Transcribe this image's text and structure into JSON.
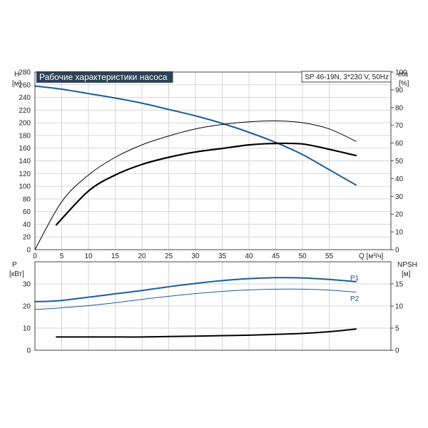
{
  "chart_data": [
    {
      "type": "line",
      "title": "Рабочие характеристики насоса",
      "subtitle": "SP 46-19N, 3*230 V, 50Hz",
      "xlabel": "Q [м³/ч]",
      "xlim": [
        0,
        60
      ],
      "x_ticks": [
        0,
        5,
        10,
        15,
        20,
        25,
        30,
        35,
        40,
        45,
        50,
        55
      ],
      "ylabel_left": "H",
      "ylabel_left_unit": "[м]",
      "ylim_left": [
        0,
        280
      ],
      "y_ticks_left": [
        0,
        20,
        40,
        60,
        80,
        100,
        120,
        140,
        160,
        180,
        200,
        220,
        240,
        260,
        280
      ],
      "ylabel_right": "eta",
      "ylabel_right_unit": "[%]",
      "ylim_right": [
        0,
        100
      ],
      "y_ticks_right": [
        0,
        10,
        20,
        30,
        40,
        50,
        60,
        70,
        80,
        90,
        100
      ],
      "grid": true,
      "colors": {
        "head": "#1c5d99",
        "eta_thin": "#000000",
        "eta_thick": "#000000"
      },
      "series": [
        {
          "axis": "left",
          "x": [
            0,
            5,
            10,
            15,
            20,
            25,
            30,
            35,
            40,
            45,
            50,
            55,
            60
          ],
          "y": [
            258,
            253,
            246,
            239,
            231,
            221,
            211,
            199,
            185,
            169,
            150,
            126,
            102
          ]
        },
        {
          "axis": "right",
          "x": [
            0,
            5,
            10,
            15,
            20,
            25,
            30,
            35,
            40,
            45,
            50,
            55,
            60
          ],
          "y": [
            0,
            27,
            42,
            52,
            59,
            64,
            68,
            70.5,
            72,
            72.5,
            71.5,
            68,
            61
          ]
        },
        {
          "axis": "right",
          "x": [
            4,
            10,
            15,
            20,
            25,
            30,
            35,
            40,
            45,
            50,
            55,
            60
          ],
          "y": [
            14,
            33,
            42,
            48,
            52,
            55,
            57,
            59,
            59.8,
            59.5,
            56.5,
            53
          ]
        }
      ]
    },
    {
      "type": "line",
      "xlim": [
        0,
        60
      ],
      "ylabel_left": "P",
      "ylabel_left_unit": "[кВт]",
      "ylim_left": [
        0,
        40
      ],
      "y_ticks_left": [
        0,
        10,
        20,
        30
      ],
      "ylabel_right": "NPSH",
      "ylabel_right_unit": "[м]",
      "ylim_right": [
        0,
        20
      ],
      "y_ticks_right": [
        0,
        5,
        10,
        15
      ],
      "grid": true,
      "colors": {
        "P1": "#1c5d99",
        "P2": "#1c5d99",
        "npsh": "#000000"
      },
      "series": [
        {
          "name": "P1",
          "axis": "left",
          "x": [
            0,
            4,
            10,
            15,
            20,
            25,
            30,
            35,
            40,
            45,
            50,
            55,
            60
          ],
          "y": [
            22,
            22.3,
            24,
            25.5,
            27,
            28.7,
            30.2,
            31.5,
            32.4,
            32.8,
            32.7,
            32,
            31
          ]
        },
        {
          "name": "P2",
          "axis": "left",
          "x": [
            0,
            4,
            10,
            15,
            20,
            25,
            30,
            35,
            40,
            45,
            50,
            55,
            60
          ],
          "y": [
            18.5,
            19,
            20.2,
            21.5,
            23,
            24.4,
            25.6,
            26.6,
            27.3,
            27.6,
            27.6,
            27.2,
            26.3
          ]
        },
        {
          "axis": "right",
          "x": [
            4,
            10,
            15,
            20,
            25,
            30,
            35,
            40,
            45,
            50,
            55,
            60
          ],
          "y": [
            3,
            3,
            3,
            3,
            3.1,
            3.2,
            3.3,
            3.4,
            3.6,
            3.8,
            4.2,
            4.8
          ]
        }
      ]
    }
  ]
}
